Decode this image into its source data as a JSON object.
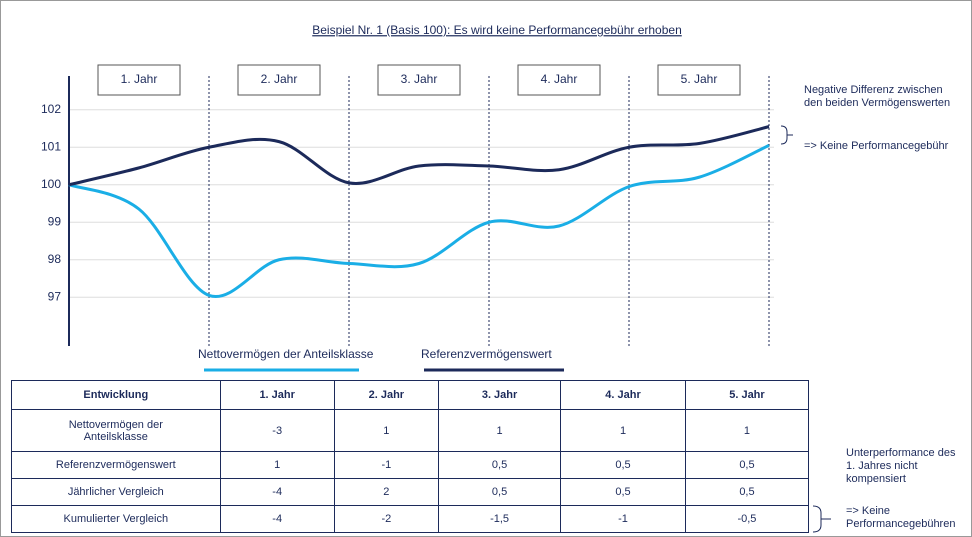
{
  "chart_data": {
    "type": "line",
    "title": "Beispiel Nr. 1 (Basis 100): Es wird keine Performancegebühr erhoben",
    "categories": [
      null,
      "1. Jahr",
      null,
      "2. Jahr",
      null,
      "3. Jahr",
      null,
      "4. Jahr",
      null,
      "5. Jahr",
      null
    ],
    "series": [
      {
        "name": "Nettovermögen der Anteilsklasse",
        "color": "#1aaee6",
        "values": [
          100,
          99.35,
          97.05,
          98.0,
          97.9,
          97.9,
          99.0,
          98.9,
          99.95,
          100.2,
          101.05
        ]
      },
      {
        "name": "Referenzvermögenswert",
        "color": "#1c2a5a",
        "values": [
          100,
          100.45,
          101.0,
          101.15,
          100.05,
          100.5,
          100.5,
          100.4,
          101.0,
          101.1,
          101.55
        ]
      }
    ],
    "ylim": [
      95.7,
      102.9
    ],
    "yticks": [
      97,
      98,
      99,
      100,
      101,
      102
    ],
    "grid": true,
    "annotations": [
      "Negative Differenz zwischen den beiden Vermögenswerten",
      "=> Keine Performancegebühr"
    ]
  },
  "table": {
    "header": [
      "Entwicklung",
      "1. Jahr",
      "2. Jahr",
      "3. Jahr",
      "4. Jahr",
      "5. Jahr"
    ],
    "rows": [
      [
        "Nettovermögen der Anteilsklasse",
        "-3",
        "1",
        "1",
        "1",
        "1"
      ],
      [
        "Referenzvermögenswert",
        "1",
        "-1",
        "0,5",
        "0,5",
        "0,5"
      ],
      [
        "Jährlicher Vergleich",
        "-4",
        "2",
        "0,5",
        "0,5",
        "0,5"
      ],
      [
        "Kumulierter Vergleich",
        "-4",
        "-2",
        "-1,5",
        "-1",
        "-0,5"
      ]
    ]
  },
  "notes": [
    "Unterperformance des 1. Jahres nicht kompensiert",
    "=> Keine Performancegebühren"
  ]
}
